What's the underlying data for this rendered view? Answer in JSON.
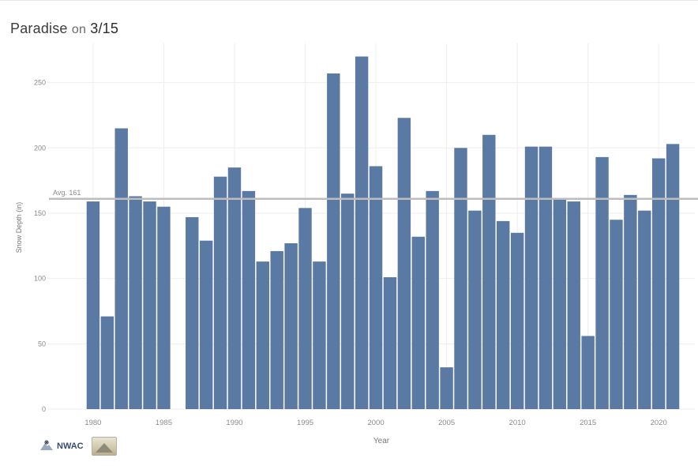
{
  "title": {
    "place": "Paradise",
    "connector": "on",
    "date": "3/15"
  },
  "logos": {
    "nwac_text": "NWAC",
    "nwac_icon": "snowflake-mountain-icon",
    "badge_icon": "mountain-landscape-icon"
  },
  "colors": {
    "bar": "#5a79a3",
    "avg_line": "#bdbdbd",
    "grid": "#eeeeee",
    "axis_text": "#8a8a8a"
  },
  "chart_data": {
    "type": "bar",
    "title": "Paradise on 3/15",
    "xlabel": "Year",
    "ylabel": "Snow Depth (in)",
    "ylim": [
      0,
      280
    ],
    "xlim": [
      1979,
      2022
    ],
    "yticks": [
      0,
      50,
      100,
      150,
      200,
      250
    ],
    "xticks": [
      1980,
      1985,
      1990,
      1995,
      2000,
      2005,
      2010,
      2015,
      2020
    ],
    "grid": true,
    "average": {
      "label": "Avg. 161",
      "value": 161
    },
    "x": [
      1980,
      1981,
      1982,
      1983,
      1984,
      1985,
      1987,
      1988,
      1989,
      1990,
      1991,
      1992,
      1993,
      1994,
      1995,
      1996,
      1997,
      1998,
      1999,
      2000,
      2001,
      2002,
      2003,
      2004,
      2005,
      2006,
      2007,
      2008,
      2009,
      2010,
      2011,
      2012,
      2013,
      2014,
      2015,
      2016,
      2017,
      2018,
      2019,
      2020,
      2021
    ],
    "values": [
      159,
      71,
      215,
      163,
      159,
      155,
      147,
      129,
      178,
      185,
      167,
      113,
      121,
      127,
      154,
      113,
      257,
      165,
      270,
      186,
      101,
      223,
      132,
      167,
      32,
      200,
      152,
      210,
      144,
      135,
      201,
      201,
      161,
      159,
      56,
      193,
      145,
      164,
      152,
      192,
      203
    ]
  }
}
